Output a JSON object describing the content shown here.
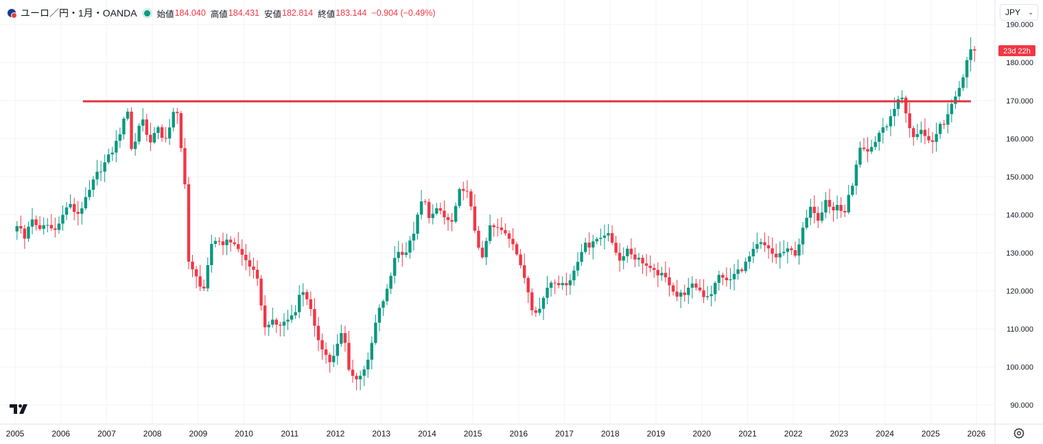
{
  "legend": {
    "symbol": "ユーロ／円・1月・OANDA",
    "open_label": "始値",
    "open": "184.040",
    "high_label": "高値",
    "high": "184.431",
    "low_label": "安値",
    "low": "182.814",
    "close_label": "終値",
    "close": "183.144",
    "change": "−0.904 (−0.49%)"
  },
  "currency": "JPY",
  "countdown": "23d 22h",
  "colors": {
    "up": "#089981",
    "down": "#f23645",
    "line": "#e5333f",
    "grid": "#f0f3fa",
    "text": "#131722"
  },
  "chart_data": {
    "type": "candlestick",
    "interval": "monthly",
    "ylim": [
      88,
      194
    ],
    "y_ticks": [
      "90.000",
      "100.000",
      "110.000",
      "120.000",
      "130.000",
      "140.000",
      "150.000",
      "160.000",
      "170.000",
      "180.000",
      "190.000"
    ],
    "x_ticks": [
      "2005",
      "2006",
      "2007",
      "2008",
      "2009",
      "2010",
      "2011",
      "2012",
      "2013",
      "2014",
      "2015",
      "2016",
      "2017",
      "2018",
      "2019",
      "2020",
      "2021",
      "2022",
      "2023",
      "2024",
      "2025",
      "2026"
    ],
    "path": [
      [
        2005.0,
        135.6
      ],
      [
        2005.1,
        137.9
      ],
      [
        2005.25,
        133.6
      ],
      [
        2005.4,
        139.6
      ],
      [
        2005.55,
        135.3
      ],
      [
        2005.7,
        137.8
      ],
      [
        2005.85,
        136.2
      ],
      [
        2006.0,
        137.5
      ],
      [
        2006.2,
        143.0
      ],
      [
        2006.4,
        140.0
      ],
      [
        2006.6,
        144.2
      ],
      [
        2006.8,
        150.2
      ],
      [
        2006.95,
        152.6
      ],
      [
        2007.2,
        157.4
      ],
      [
        2007.35,
        162.2
      ],
      [
        2007.5,
        167.6
      ],
      [
        2007.6,
        155.5
      ],
      [
        2007.75,
        163.6
      ],
      [
        2007.85,
        165.5
      ],
      [
        2007.95,
        158.6
      ],
      [
        2008.15,
        162.6
      ],
      [
        2008.3,
        159.6
      ],
      [
        2008.45,
        163.3
      ],
      [
        2008.55,
        169.6
      ],
      [
        2008.65,
        160.2
      ],
      [
        2008.75,
        148.0
      ],
      [
        2008.85,
        123.0
      ],
      [
        2008.95,
        126.4
      ],
      [
        2009.15,
        118.6
      ],
      [
        2009.35,
        133.6
      ],
      [
        2009.6,
        132.6
      ],
      [
        2009.8,
        133.2
      ],
      [
        2009.95,
        130.1
      ],
      [
        2010.2,
        126.2
      ],
      [
        2010.35,
        122.0
      ],
      [
        2010.5,
        110.1
      ],
      [
        2010.6,
        112.1
      ],
      [
        2010.8,
        110.7
      ],
      [
        2011.0,
        112.5
      ],
      [
        2011.15,
        114.5
      ],
      [
        2011.3,
        120.6
      ],
      [
        2011.45,
        117.5
      ],
      [
        2011.6,
        109.1
      ],
      [
        2011.85,
        102.7
      ],
      [
        2011.95,
        100.8
      ],
      [
        2012.2,
        109.9
      ],
      [
        2012.35,
        98.6
      ],
      [
        2012.5,
        96.6
      ],
      [
        2012.6,
        98.5
      ],
      [
        2012.75,
        101.2
      ],
      [
        2012.85,
        107.1
      ],
      [
        2012.95,
        113.5
      ],
      [
        2013.2,
        121.0
      ],
      [
        2013.35,
        130.0
      ],
      [
        2013.6,
        130.3
      ],
      [
        2013.75,
        135.5
      ],
      [
        2013.95,
        144.8
      ],
      [
        2014.1,
        139.2
      ],
      [
        2014.3,
        141.6
      ],
      [
        2014.45,
        138.6
      ],
      [
        2014.6,
        137.9
      ],
      [
        2014.75,
        146.1
      ],
      [
        2014.85,
        147.2
      ],
      [
        2014.95,
        144.8
      ],
      [
        2015.1,
        135.0
      ],
      [
        2015.25,
        128.0
      ],
      [
        2015.4,
        136.9
      ],
      [
        2015.55,
        136.4
      ],
      [
        2015.75,
        135.4
      ],
      [
        2015.95,
        132.4
      ],
      [
        2016.05,
        127.1
      ],
      [
        2016.2,
        122.5
      ],
      [
        2016.35,
        114.8
      ],
      [
        2016.5,
        115.2
      ],
      [
        2016.7,
        122.2
      ],
      [
        2016.85,
        122.8
      ],
      [
        2017.0,
        121.3
      ],
      [
        2017.15,
        122.8
      ],
      [
        2017.3,
        126.5
      ],
      [
        2017.5,
        133.3
      ],
      [
        2017.6,
        131.2
      ],
      [
        2017.75,
        133.7
      ],
      [
        2017.95,
        135.3
      ],
      [
        2018.1,
        132.6
      ],
      [
        2018.25,
        127.9
      ],
      [
        2018.4,
        131.3
      ],
      [
        2018.55,
        129.0
      ],
      [
        2018.75,
        127.7
      ],
      [
        2018.95,
        124.9
      ],
      [
        2019.1,
        124.6
      ],
      [
        2019.3,
        122.7
      ],
      [
        2019.5,
        118.6
      ],
      [
        2019.7,
        119.7
      ],
      [
        2019.85,
        121.4
      ],
      [
        2019.95,
        121.0
      ],
      [
        2020.1,
        118.5
      ],
      [
        2020.25,
        119.5
      ],
      [
        2020.45,
        124.8
      ],
      [
        2020.6,
        122.0
      ],
      [
        2020.8,
        125.0
      ],
      [
        2020.95,
        126.2
      ],
      [
        2021.1,
        129.2
      ],
      [
        2021.3,
        132.6
      ],
      [
        2021.45,
        131.3
      ],
      [
        2021.65,
        128.8
      ],
      [
        2021.8,
        130.1
      ],
      [
        2021.95,
        130.6
      ],
      [
        2022.1,
        129.8
      ],
      [
        2022.3,
        138.0
      ],
      [
        2022.45,
        142.4
      ],
      [
        2022.6,
        138.6
      ],
      [
        2022.75,
        144.6
      ],
      [
        2022.9,
        140.8
      ],
      [
        2023.0,
        142.5
      ],
      [
        2023.15,
        140.0
      ],
      [
        2023.35,
        149.0
      ],
      [
        2023.5,
        157.2
      ],
      [
        2023.65,
        155.9
      ],
      [
        2023.8,
        157.9
      ],
      [
        2023.95,
        162.8
      ],
      [
        2024.1,
        163.3
      ],
      [
        2024.3,
        169.9
      ],
      [
        2024.45,
        171.2
      ],
      [
        2024.55,
        163.0
      ],
      [
        2024.7,
        159.6
      ],
      [
        2024.85,
        163.1
      ],
      [
        2024.95,
        160.0
      ],
      [
        2025.1,
        158.2
      ],
      [
        2025.25,
        163.5
      ],
      [
        2025.4,
        165.0
      ],
      [
        2025.5,
        169.0
      ],
      [
        2025.6,
        172.1
      ],
      [
        2025.7,
        173.4
      ],
      [
        2025.8,
        179.7
      ],
      [
        2025.9,
        184.0
      ],
      [
        2026.0,
        183.1
      ]
    ],
    "horizontal_line": {
      "value": 169.8,
      "from": 2006.48,
      "to": 2025.88
    },
    "last_value": 183.144
  }
}
